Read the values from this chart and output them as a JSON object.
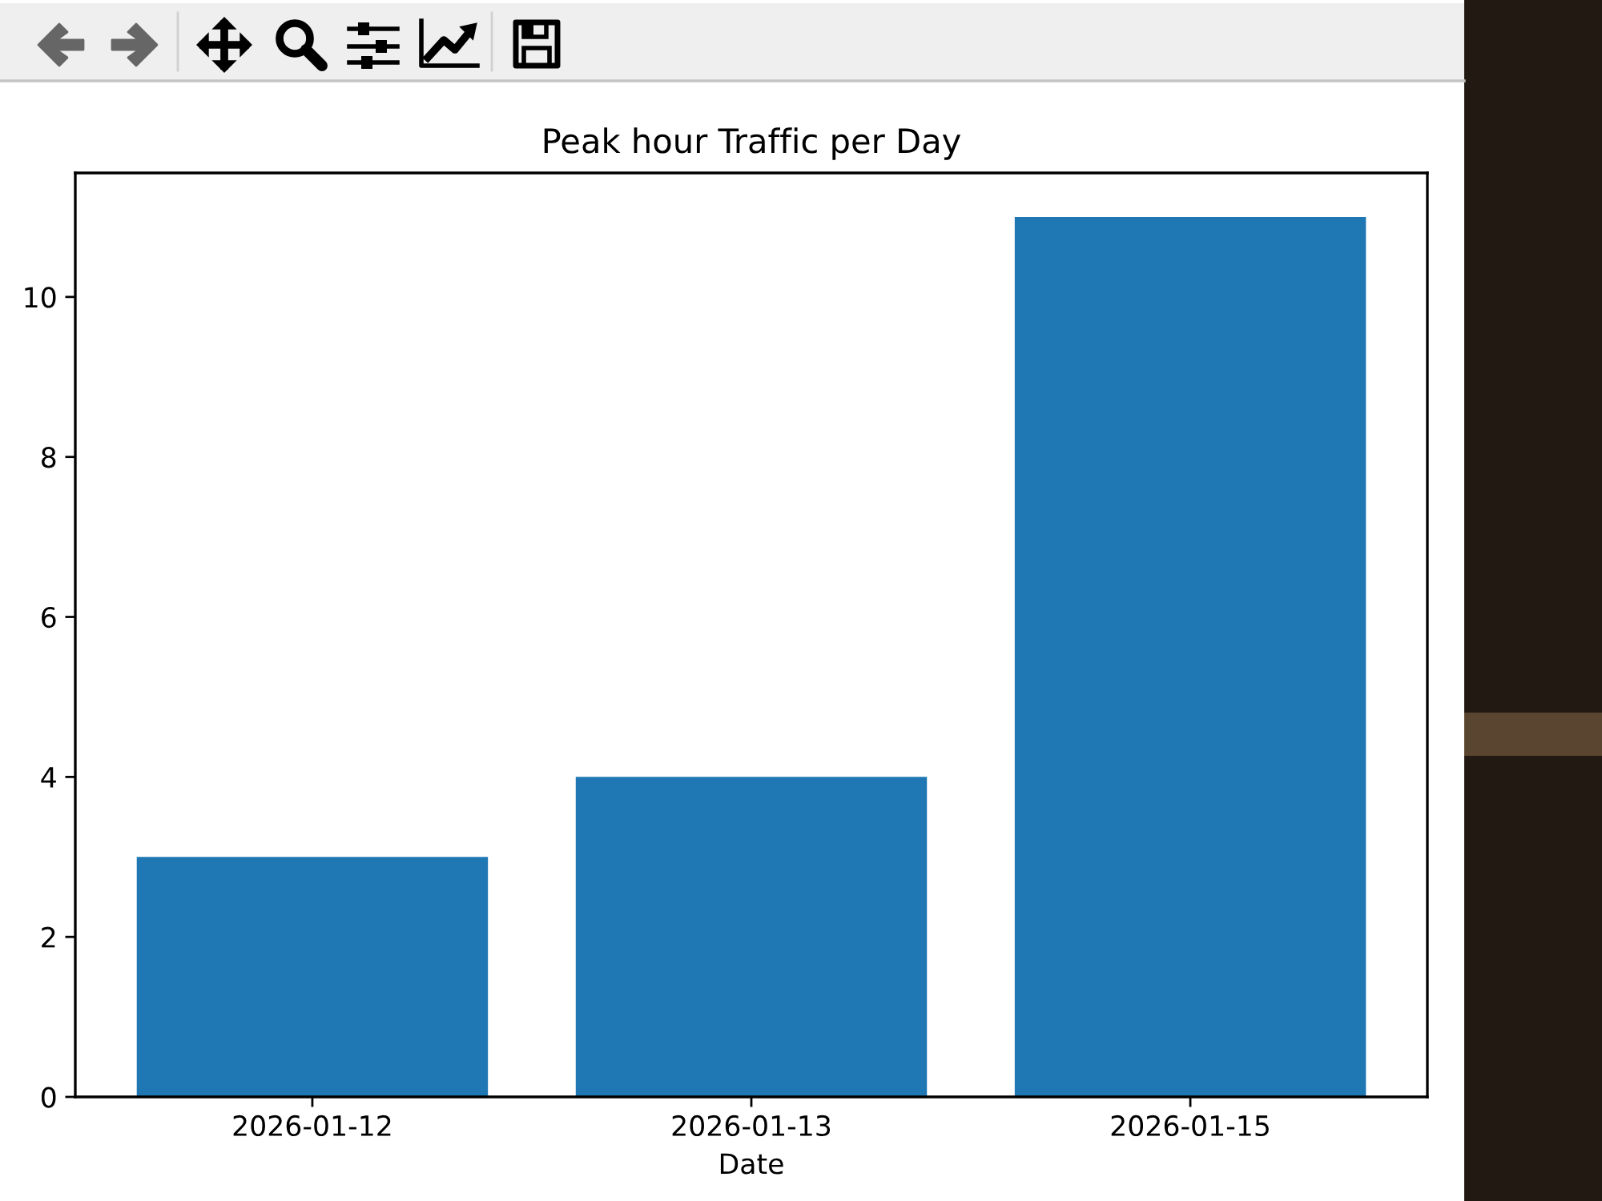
{
  "chart_data": {
    "type": "bar",
    "title": "Peak hour Traffic per Day",
    "xlabel": "Date",
    "categories": [
      "2026-01-12",
      "2026-01-13",
      "2026-01-15"
    ],
    "values": [
      3,
      4,
      11
    ],
    "color": "#1f77b4",
    "ylim": [
      0,
      11.55
    ],
    "yticks": [
      0,
      2,
      4,
      6,
      8,
      10
    ],
    "grid": false,
    "legend": false
  }
}
